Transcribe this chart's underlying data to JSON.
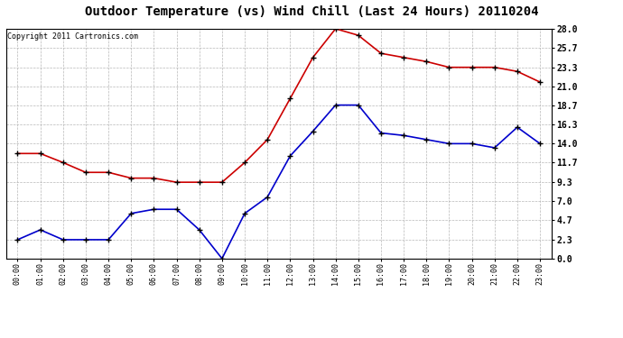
{
  "title": "Outdoor Temperature (vs) Wind Chill (Last 24 Hours) 20110204",
  "copyright_text": "Copyright 2011 Cartronics.com",
  "hours": [
    "00:00",
    "01:00",
    "02:00",
    "03:00",
    "04:00",
    "05:00",
    "06:00",
    "07:00",
    "08:00",
    "09:00",
    "10:00",
    "11:00",
    "12:00",
    "13:00",
    "14:00",
    "15:00",
    "16:00",
    "17:00",
    "18:00",
    "19:00",
    "20:00",
    "21:00",
    "22:00",
    "23:00"
  ],
  "temp": [
    12.8,
    12.8,
    11.7,
    10.5,
    10.5,
    9.8,
    9.8,
    9.3,
    9.3,
    9.3,
    11.7,
    14.5,
    19.5,
    24.5,
    28.0,
    27.2,
    25.0,
    24.5,
    24.0,
    23.3,
    23.3,
    23.3,
    22.8,
    21.5
  ],
  "wind_chill": [
    2.3,
    3.5,
    2.3,
    2.3,
    2.3,
    5.5,
    6.0,
    6.0,
    3.5,
    0.0,
    5.5,
    7.5,
    12.5,
    15.5,
    18.7,
    18.7,
    15.3,
    15.0,
    14.5,
    14.0,
    14.0,
    13.5,
    16.0,
    14.0
  ],
  "temp_color": "#cc0000",
  "wind_chill_color": "#0000cc",
  "background_color": "#ffffff",
  "grid_color": "#b0b0b0",
  "yticks": [
    0.0,
    2.3,
    4.7,
    7.0,
    9.3,
    11.7,
    14.0,
    16.3,
    18.7,
    21.0,
    23.3,
    25.7,
    28.0
  ],
  "ylim": [
    0.0,
    28.0
  ],
  "title_fontsize": 10,
  "copyright_fontsize": 6,
  "marker_size": 4,
  "line_width": 1.2
}
